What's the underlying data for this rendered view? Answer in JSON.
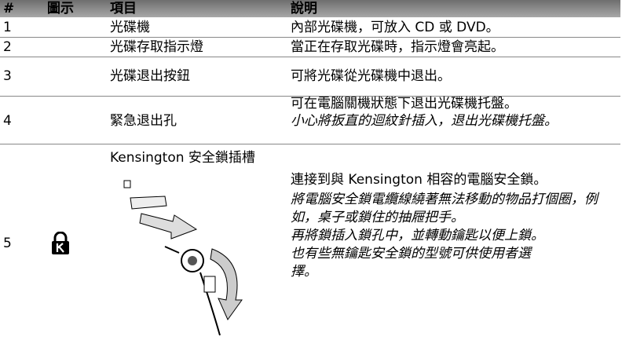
{
  "table": {
    "header": [
      "#",
      "圖示",
      "項目",
      "說明"
    ],
    "rows": [
      {
        "number": "1",
        "item": "光碟機",
        "description": "內部光碟機，可放入 CD 或 DVD。"
      },
      {
        "number": "2",
        "item": "光碟存取指示燈",
        "description": "當正在存取光碟時，指示燈會亮起。"
      },
      {
        "number": "3",
        "item": "光碟退出按鈕",
        "description": "可將光碟從光碟機中退出。"
      },
      {
        "number": "4",
        "item": "緊急退出孔",
        "description": "可在電腦關機狀態下退出光碟機托盤。",
        "notes": [
          "小心將扳直的迴紋針插入，退出光碟機托盤。"
        ]
      },
      {
        "number": "5",
        "item": "Kensington 安全鎖插槽",
        "description": "連接到與 Kensington 相容的電腦安全鎖。",
        "notes": [
          "將電腦安全鎖電纜線繞著無法移動的物品打個圈，例如，桌子或鎖住的抽屜把手。",
          "再將鎖插入鎖孔中，並轉動鑰匙以便上鎖。",
          "也有些無鑰匙安全鎖的型號可供使用者選擇。"
        ]
      }
    ]
  }
}
